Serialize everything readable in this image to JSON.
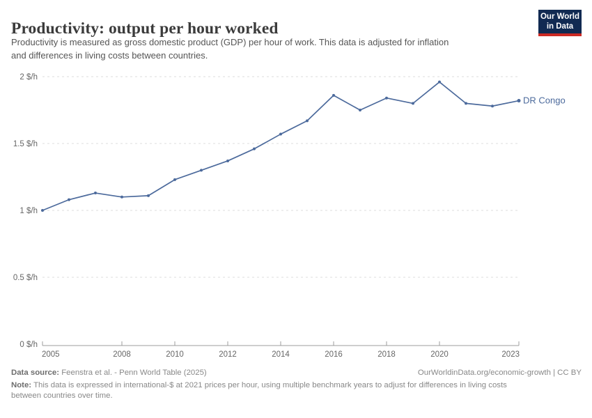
{
  "header": {
    "title": "Productivity: output per hour worked",
    "subtitle_line1": "Productivity is measured as gross domestic product (GDP) per hour of work. This data is adjusted for inflation",
    "subtitle_line2": "and differences in living costs between countries.",
    "logo_line1": "Our World",
    "logo_line2": "in Data",
    "logo_bg_color": "#112a52",
    "logo_stripe_color": "#cc2a24"
  },
  "chart_data": {
    "type": "line",
    "title": "Productivity: output per hour worked",
    "xlabel": "",
    "ylabel": "",
    "xlim": [
      2005,
      2023
    ],
    "ylim": [
      0,
      2
    ],
    "grid": "horizontal-dashed",
    "legend_position": "end-of-line-label",
    "x_ticks": [
      2005,
      2008,
      2010,
      2012,
      2014,
      2016,
      2018,
      2020,
      2023
    ],
    "y_ticks": [
      {
        "value": 0,
        "label": "0 $/h"
      },
      {
        "value": 0.5,
        "label": "0.5 $/h"
      },
      {
        "value": 1,
        "label": "1 $/h"
      },
      {
        "value": 1.5,
        "label": "1.5 $/h"
      },
      {
        "value": 2,
        "label": "2 $/h"
      }
    ],
    "series": [
      {
        "name": "DR Congo",
        "color": "#4c6a9c",
        "x": [
          2005,
          2006,
          2007,
          2008,
          2009,
          2010,
          2011,
          2012,
          2013,
          2014,
          2015,
          2016,
          2017,
          2018,
          2019,
          2020,
          2021,
          2022,
          2023
        ],
        "values": [
          1.0,
          1.08,
          1.13,
          1.1,
          1.11,
          1.23,
          1.3,
          1.37,
          1.46,
          1.57,
          1.67,
          1.86,
          1.75,
          1.84,
          1.8,
          1.96,
          1.8,
          1.78,
          1.82
        ]
      }
    ],
    "colors": {
      "gridline": "#dcdcdc",
      "axis": "#9e9e9e",
      "tick_label": "#666666"
    }
  },
  "footer": {
    "source_label": "Data source:",
    "source_text": "Feenstra et al. - Penn World Table (2025)",
    "link_text": "OurWorldinData.org/economic-growth | CC BY",
    "note_label": "Note:",
    "note_line1": "This data is expressed in international-$ at 2021 prices per hour, using multiple benchmark years to adjust for differences in living costs",
    "note_line2": "between countries over time."
  }
}
